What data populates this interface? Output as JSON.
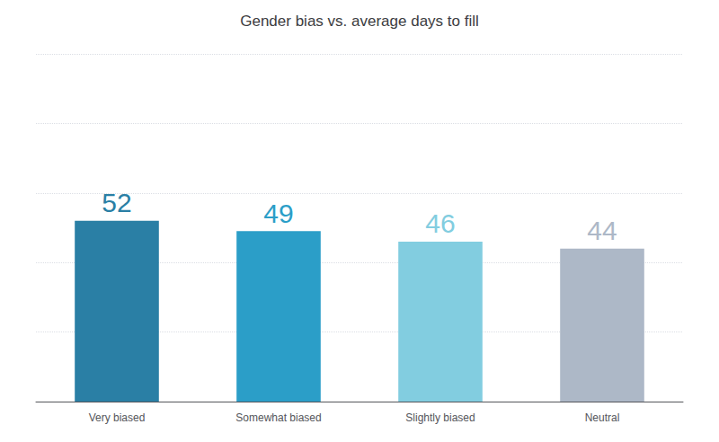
{
  "chart_data": {
    "type": "bar",
    "title": "Gender bias vs. average days to fill",
    "categories": [
      "Very biased",
      "Somewhat biased",
      "Slightly biased",
      "Neutral"
    ],
    "values": [
      52,
      49,
      46,
      44
    ],
    "colors": [
      "#2a7fa5",
      "#2b9ec8",
      "#82cde0",
      "#adb8c7"
    ],
    "ylim": [
      0,
      100
    ],
    "yticks": [
      0,
      20,
      40,
      60,
      80,
      100
    ],
    "grid": true,
    "data_labels": true,
    "tick_labels": "x"
  }
}
